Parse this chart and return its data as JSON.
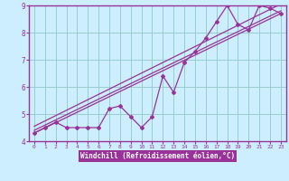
{
  "background_color": "#cceeff",
  "line_color": "#993399",
  "grid_color": "#99cccc",
  "axis_color": "#993399",
  "xlabel": "Windchill (Refroidissement éolien,°C)",
  "xlabel_bg": "#993399",
  "xlabel_fg": "#ffffff",
  "xlim": [
    -0.5,
    23.5
  ],
  "ylim": [
    4,
    9
  ],
  "yticks": [
    4,
    5,
    6,
    7,
    8,
    9
  ],
  "xticks": [
    0,
    1,
    2,
    3,
    4,
    5,
    6,
    7,
    8,
    9,
    10,
    11,
    12,
    13,
    14,
    15,
    16,
    17,
    18,
    19,
    20,
    21,
    22,
    23
  ],
  "main_series": {
    "x": [
      0,
      1,
      2,
      3,
      4,
      5,
      6,
      7,
      8,
      9,
      10,
      11,
      12,
      13,
      14,
      15,
      16,
      17,
      18,
      19,
      20,
      21,
      22,
      23
    ],
    "y": [
      4.3,
      4.5,
      4.7,
      4.5,
      4.5,
      4.5,
      4.5,
      5.2,
      5.3,
      4.9,
      4.5,
      4.9,
      6.4,
      5.8,
      6.9,
      7.3,
      7.8,
      8.4,
      9.0,
      8.3,
      8.1,
      9.0,
      8.9,
      8.7
    ]
  },
  "regression_lines": [
    {
      "x": [
        0,
        23
      ],
      "y": [
        4.3,
        8.7
      ]
    },
    {
      "x": [
        0,
        23
      ],
      "y": [
        4.4,
        8.8
      ]
    },
    {
      "x": [
        0,
        23
      ],
      "y": [
        4.55,
        9.05
      ]
    }
  ]
}
